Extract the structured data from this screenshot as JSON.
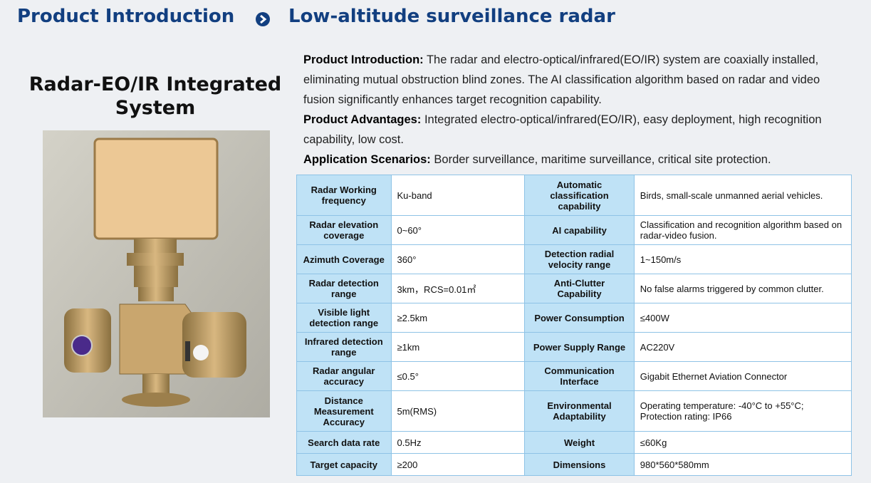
{
  "header": {
    "section": "Product Introduction",
    "title": "Low-altitude surveillance radar"
  },
  "product": {
    "name": "Radar-EO/IR Integrated System"
  },
  "description": [
    {
      "label": "Product Introduction:",
      "text": "The radar and electro-optical/infrared(EO/IR)  system are coaxially installed, eliminating mutual obstruction blind zones. The AI classification algorithm based on radar and video fusion significantly enhances target recognition capability."
    },
    {
      "label": "Product Advantages:",
      "text": "Integrated electro-optical/infrared(EO/IR), easy deployment, high recognition capability, low cost."
    },
    {
      "label": "Application Scenarios:",
      "text": "Border surveillance, maritime surveillance, critical site protection."
    }
  ],
  "table": {
    "rows": [
      [
        "Radar Working frequency",
        "Ku-band",
        "Automatic classification capability",
        "Birds, small-scale unmanned aerial vehicles."
      ],
      [
        "Radar elevation coverage",
        "0~60°",
        "AI capability",
        "Classification and recognition algorithm based on radar-video fusion."
      ],
      [
        "Azimuth Coverage",
        "360°",
        "Detection radial velocity range",
        "1~150m/s"
      ],
      [
        "Radar detection range",
        "3km，RCS=0.01㎡",
        "Anti-Clutter Capability",
        "No false alarms triggered by common clutter."
      ],
      [
        "Visible light detection range",
        "≥2.5km",
        "Power Consumption",
        "≤400W"
      ],
      [
        "Infrared detection range",
        "≥1km",
        "Power Supply Range",
        "AC220V"
      ],
      [
        "Radar angular accuracy",
        "≤0.5°",
        "Communication Interface",
        "Gigabit Ethernet Aviation Connector"
      ],
      [
        "Distance Measurement Accuracy",
        "5m(RMS)",
        "Environmental Adaptability",
        "Operating temperature: -40°C to +55°C; Protection rating: IP66"
      ],
      [
        "Search data rate",
        "0.5Hz",
        "Weight",
        "≤60Kg"
      ],
      [
        "Target capacity",
        "≥200",
        "Dimensions",
        "980*560*580mm"
      ]
    ]
  }
}
